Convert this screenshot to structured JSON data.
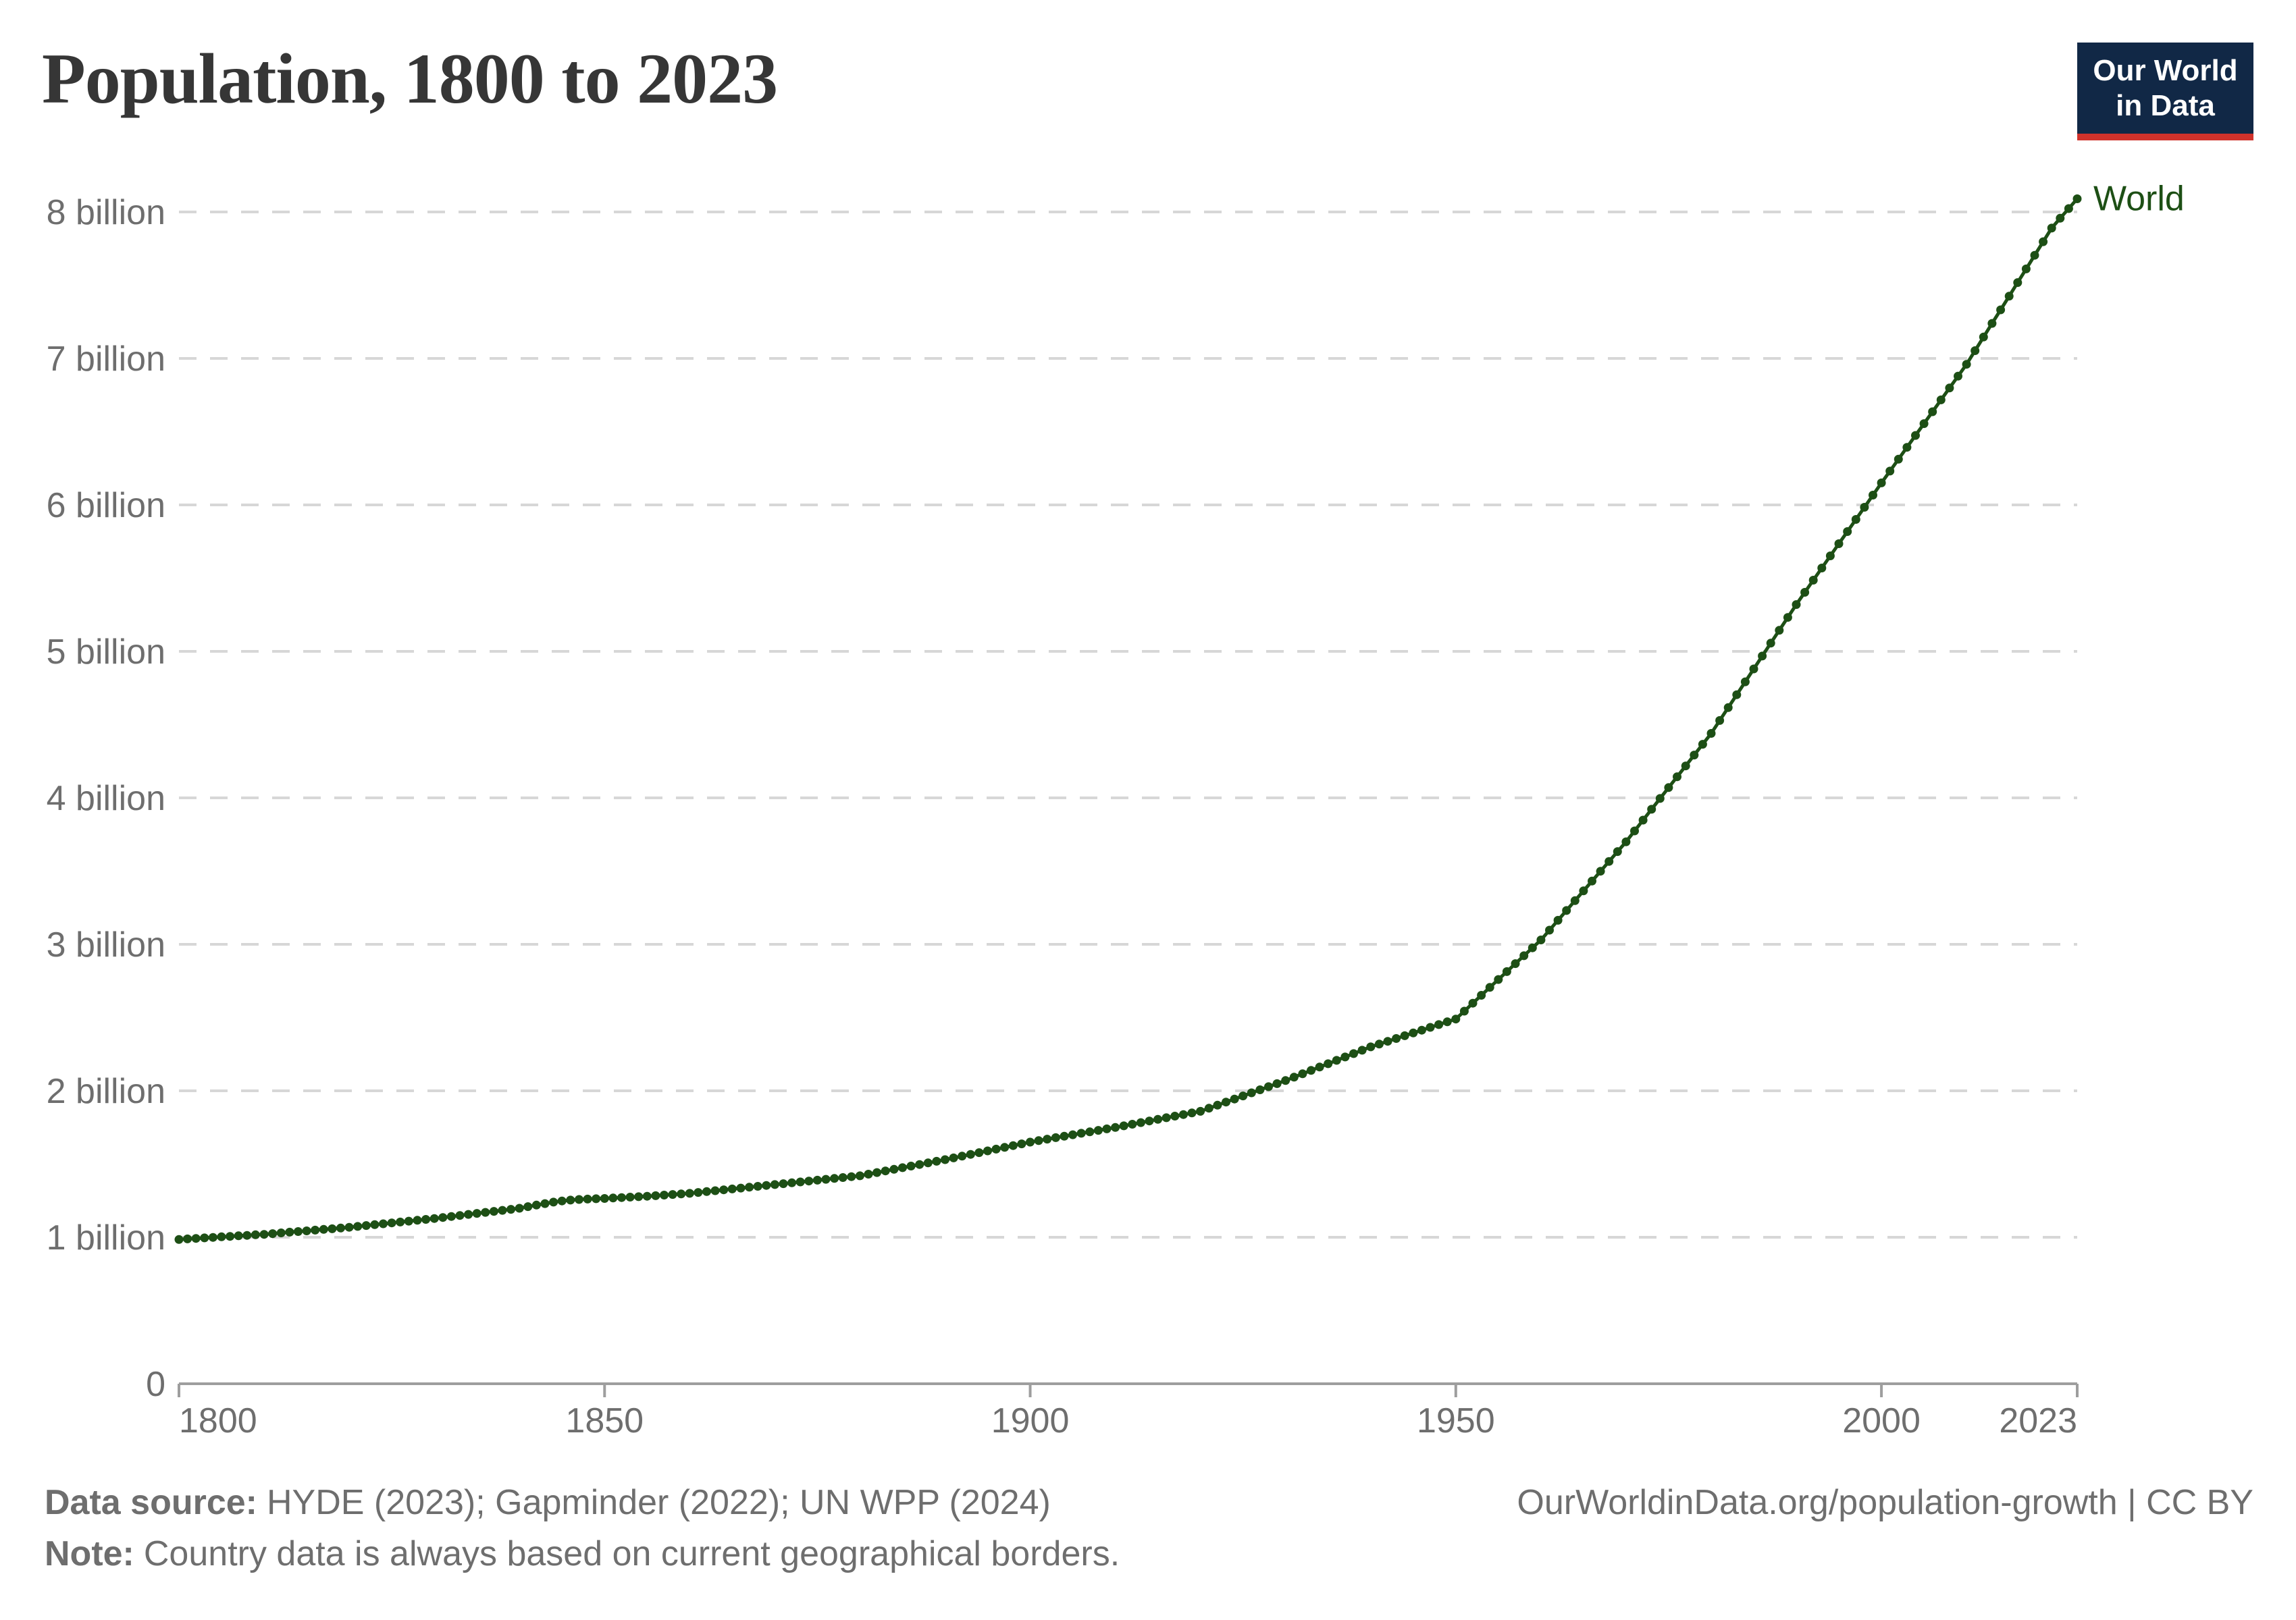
{
  "header": {
    "title": "Population, 1800 to 2023"
  },
  "logo": {
    "line1": "Our World",
    "line2": "in Data"
  },
  "footer": {
    "source_label": "Data source:",
    "source_text": "HYDE (2023); Gapminder (2022); UN WPP (2024)",
    "note_label": "Note:",
    "note_text": "Country data is always based on current geographical borders.",
    "right_text": "OurWorldinData.org/population-growth | CC BY"
  },
  "colors": {
    "accent_green": "#1d4f15",
    "logo_navy": "#112846",
    "logo_red": "#d0322b",
    "title_dark": "#363636",
    "label_gray": "#6e6e6e",
    "grid_gray": "#d7d7d7",
    "axis_gray": "#9e9e9e"
  },
  "chart_data": {
    "type": "line",
    "title": "Population, 1800 to 2023",
    "xlabel": "",
    "ylabel": "",
    "xlim": [
      1800,
      2023
    ],
    "ylim": [
      0,
      8.5
    ],
    "grid": "horizontal-dashed",
    "legend_position": "end-of-line-label",
    "x_tick_labels": [
      "1800",
      "1850",
      "1900",
      "1950",
      "2000",
      "2023"
    ],
    "x_ticks": [
      1800,
      1850,
      1900,
      1950,
      2000,
      2023
    ],
    "y_ticks": [
      {
        "v": 0,
        "label": "0"
      },
      {
        "v": 1,
        "label": "1 billion"
      },
      {
        "v": 2,
        "label": "2 billion"
      },
      {
        "v": 3,
        "label": "3 billion"
      },
      {
        "v": 4,
        "label": "4 billion"
      },
      {
        "v": 5,
        "label": "5 billion"
      },
      {
        "v": 6,
        "label": "6 billion"
      },
      {
        "v": 7,
        "label": "7 billion"
      },
      {
        "v": 8,
        "label": "8 billion"
      }
    ],
    "series": [
      {
        "name": "World",
        "unit": "billion",
        "x_start": 1800,
        "x_step": 1,
        "values": [
          0.985,
          0.989,
          0.992,
          0.996,
          0.999,
          1.003,
          1.006,
          1.01,
          1.013,
          1.017,
          1.02,
          1.025,
          1.03,
          1.035,
          1.039,
          1.044,
          1.049,
          1.054,
          1.058,
          1.063,
          1.068,
          1.074,
          1.08,
          1.086,
          1.092,
          1.098,
          1.104,
          1.11,
          1.116,
          1.122,
          1.128,
          1.135,
          1.142,
          1.149,
          1.156,
          1.163,
          1.17,
          1.177,
          1.184,
          1.191,
          1.198,
          1.209,
          1.22,
          1.23,
          1.24,
          1.248,
          1.254,
          1.258,
          1.261,
          1.263,
          1.265,
          1.268,
          1.271,
          1.274,
          1.277,
          1.28,
          1.284,
          1.288,
          1.292,
          1.296,
          1.3,
          1.306,
          1.312,
          1.318,
          1.324,
          1.33,
          1.336,
          1.342,
          1.348,
          1.354,
          1.36,
          1.366,
          1.372,
          1.378,
          1.384,
          1.39,
          1.396,
          1.402,
          1.408,
          1.414,
          1.42,
          1.431,
          1.442,
          1.453,
          1.464,
          1.475,
          1.486,
          1.497,
          1.508,
          1.519,
          1.53,
          1.542,
          1.554,
          1.566,
          1.578,
          1.59,
          1.602,
          1.614,
          1.626,
          1.638,
          1.65,
          1.66,
          1.67,
          1.68,
          1.69,
          1.7,
          1.71,
          1.72,
          1.73,
          1.74,
          1.75,
          1.761,
          1.772,
          1.783,
          1.794,
          1.805,
          1.816,
          1.827,
          1.838,
          1.849,
          1.86,
          1.881,
          1.902,
          1.923,
          1.944,
          1.965,
          1.986,
          2.007,
          2.028,
          2.049,
          2.07,
          2.093,
          2.116,
          2.139,
          2.162,
          2.185,
          2.208,
          2.231,
          2.254,
          2.277,
          2.3,
          2.319,
          2.338,
          2.357,
          2.376,
          2.395,
          2.414,
          2.433,
          2.452,
          2.471,
          2.49,
          2.544,
          2.598,
          2.652,
          2.706,
          2.76,
          2.814,
          2.868,
          2.922,
          2.976,
          3.03,
          3.097,
          3.164,
          3.231,
          3.298,
          3.365,
          3.432,
          3.499,
          3.566,
          3.633,
          3.7,
          3.774,
          3.848,
          3.922,
          3.996,
          4.07,
          4.144,
          4.218,
          4.292,
          4.366,
          4.44,
          4.528,
          4.616,
          4.704,
          4.792,
          4.88,
          4.968,
          5.056,
          5.144,
          5.232,
          5.32,
          5.403,
          5.486,
          5.569,
          5.652,
          5.735,
          5.818,
          5.901,
          5.984,
          6.067,
          6.15,
          6.231,
          6.312,
          6.393,
          6.474,
          6.555,
          6.636,
          6.717,
          6.798,
          6.879,
          6.96,
          7.053,
          7.146,
          7.239,
          7.332,
          7.425,
          7.518,
          7.611,
          7.704,
          7.797,
          7.89,
          7.957,
          8.023,
          8.09
        ]
      }
    ]
  }
}
